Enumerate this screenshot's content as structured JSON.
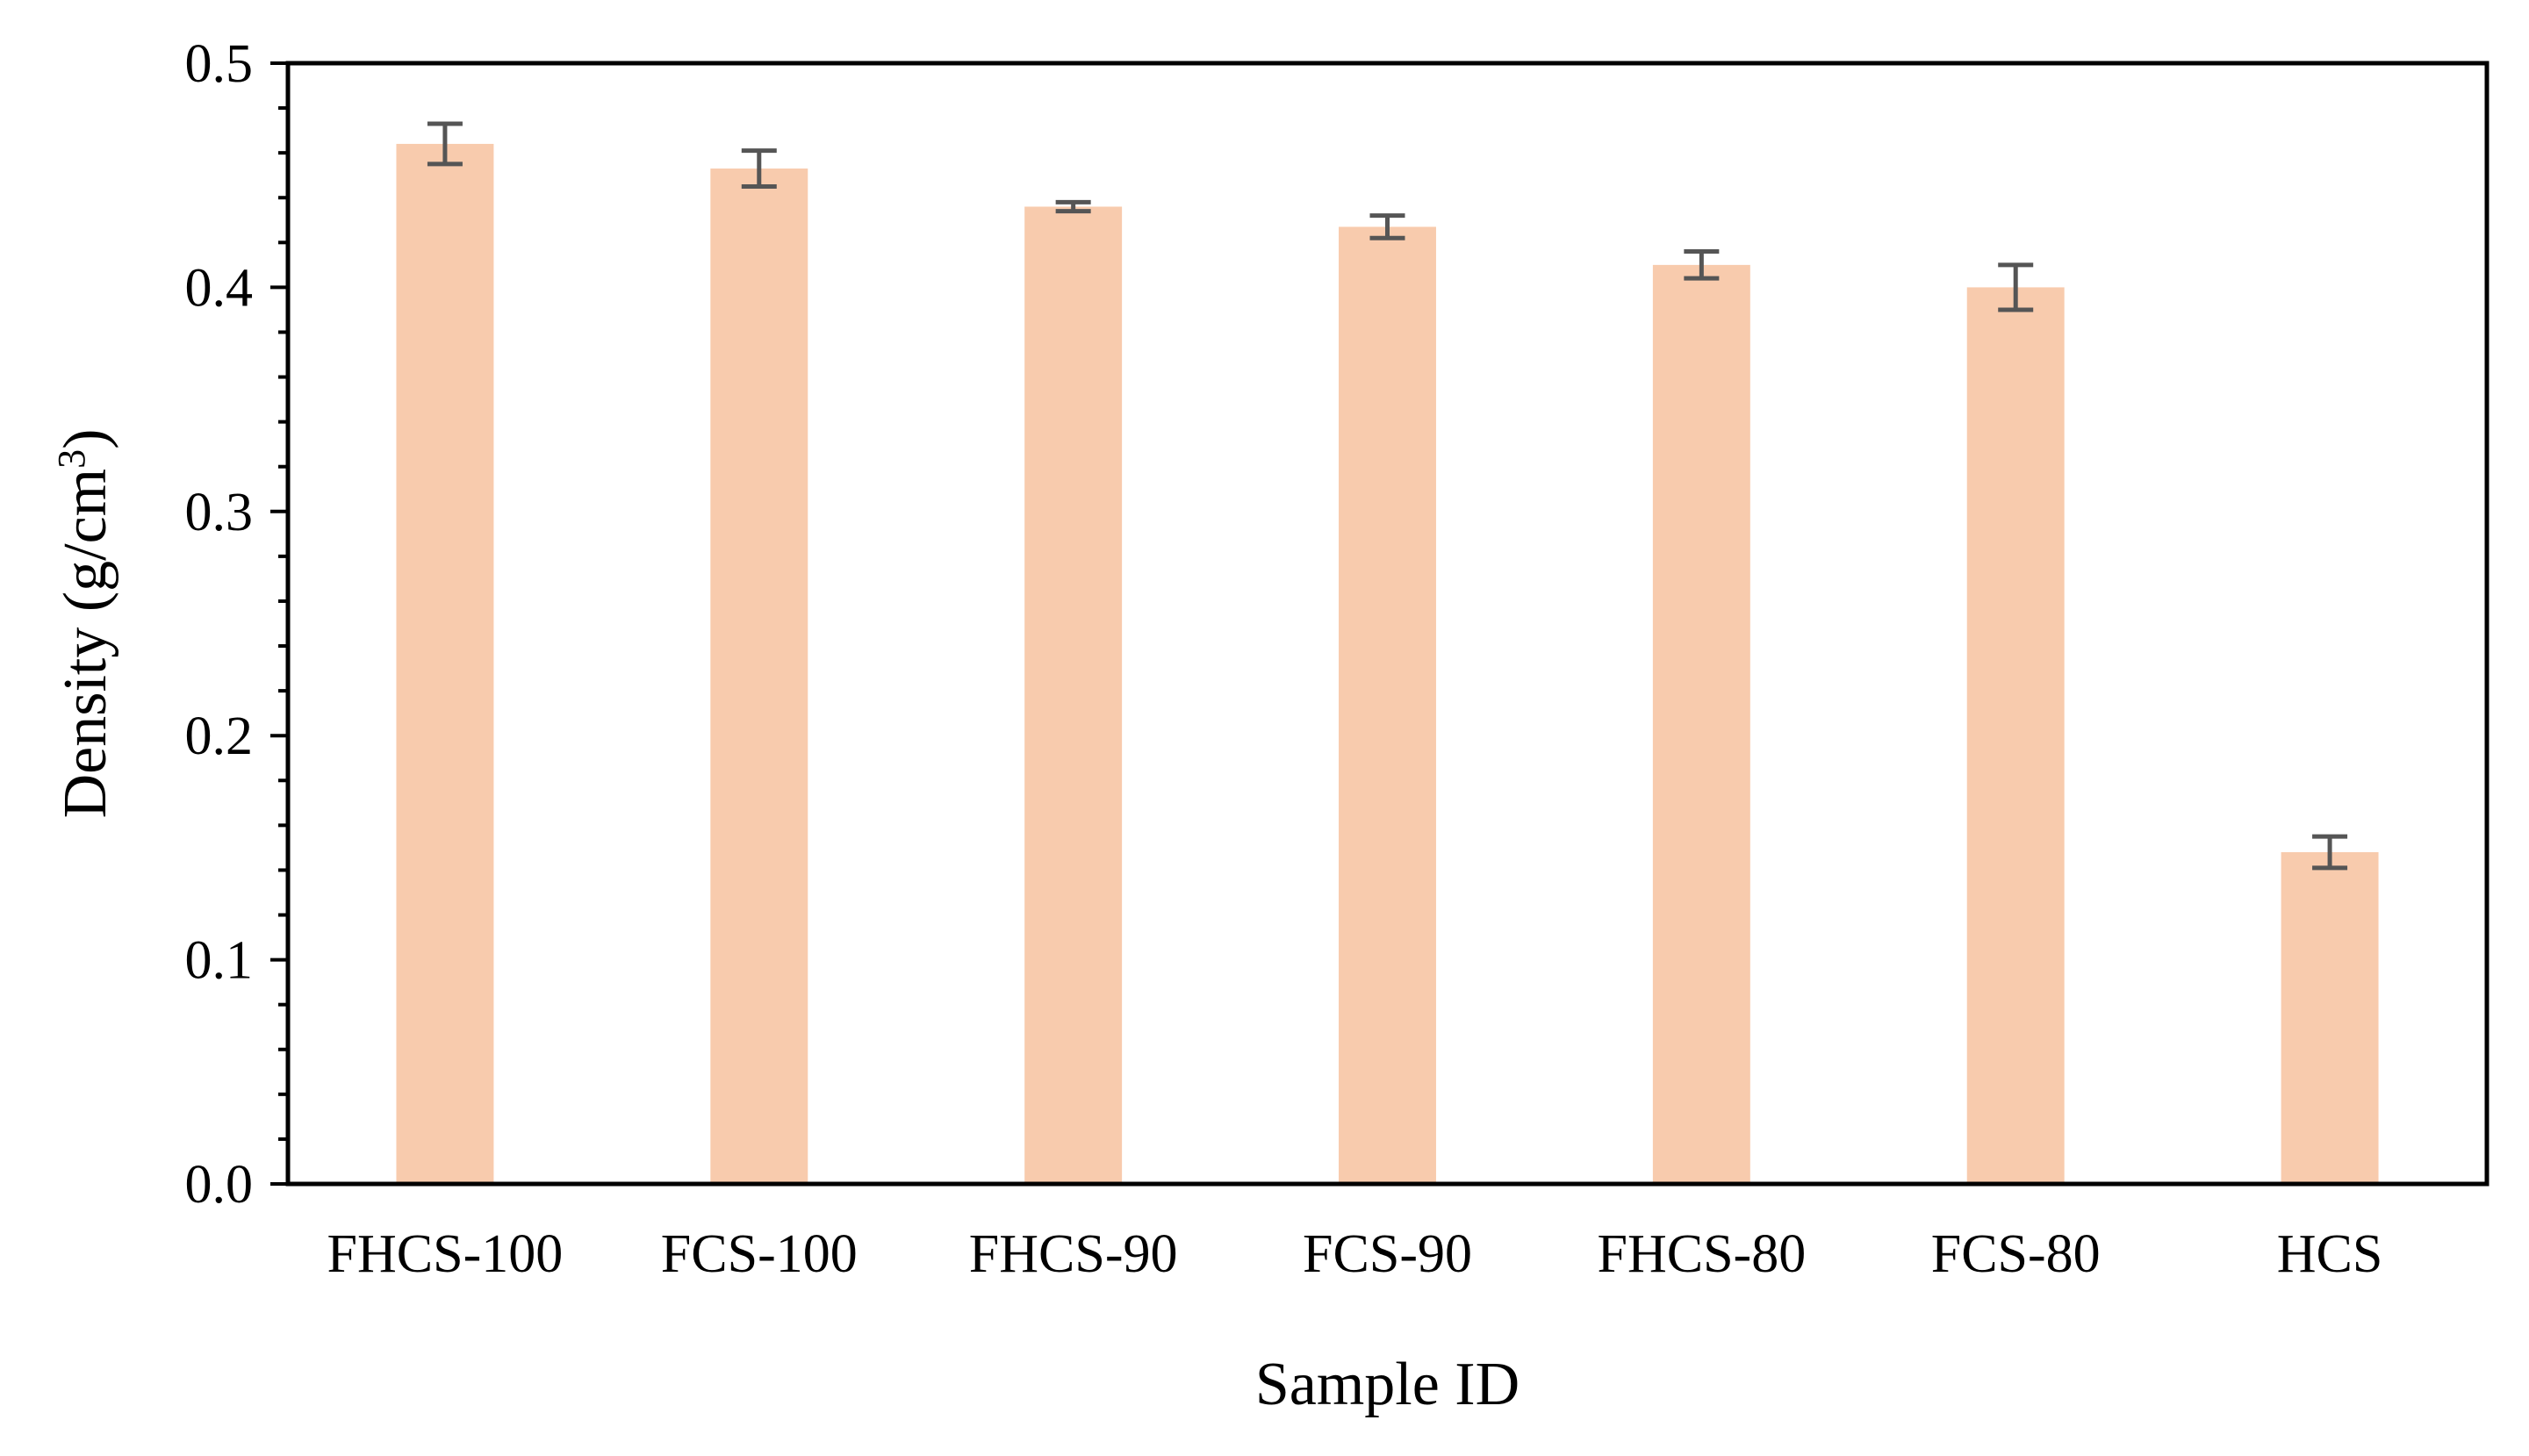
{
  "chart_data": {
    "type": "bar",
    "title": "",
    "xlabel": "Sample ID",
    "ylabel": {
      "text": "Density (g/cm",
      "sup": "3",
      "suffix": ")"
    },
    "categories": [
      "FHCS-100",
      "FCS-100",
      "FHCS-90",
      "FCS-90",
      "FHCS-80",
      "FCS-80",
      "HCS"
    ],
    "values": [
      0.464,
      0.453,
      0.436,
      0.427,
      0.41,
      0.4,
      0.148
    ],
    "errors": [
      0.009,
      0.008,
      0.002,
      0.005,
      0.006,
      0.01,
      0.007
    ],
    "ylim": [
      0,
      0.5
    ],
    "yticks": [
      "0.0",
      "0.1",
      "0.2",
      "0.3",
      "0.4",
      "0.5"
    ],
    "y_minor_ticks_per_major": 5,
    "grid": false,
    "legend": "none",
    "colors": {
      "bar": "#f8cbad",
      "error_bar": "#555555",
      "axis": "#000000"
    }
  }
}
